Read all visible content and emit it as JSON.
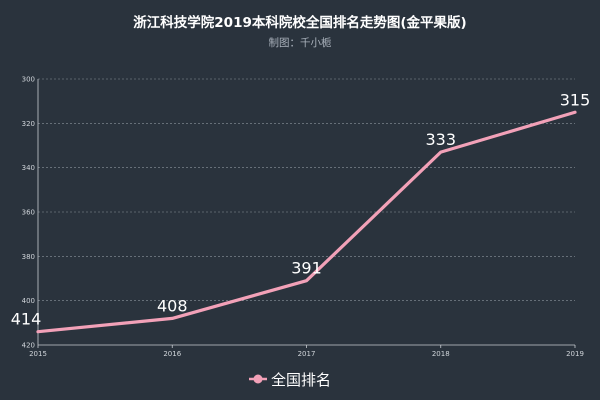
{
  "chart_data": {
    "type": "line",
    "title": "浙江科技学院2019本科院校全国排名走势图(金平果版)",
    "subtitle": "制图：千小栀",
    "categories": [
      "2015",
      "2016",
      "2017",
      "2018",
      "2019"
    ],
    "series": [
      {
        "name": "全国排名",
        "values": [
          414,
          408,
          391,
          333,
          315
        ],
        "color": "#f2a1b8"
      }
    ],
    "y_ticks": [
      "300",
      "320",
      "340",
      "360",
      "380",
      "400",
      "420"
    ],
    "ylim": [
      300,
      420
    ],
    "y_inverted": true,
    "grid": true,
    "legend_position": "bottom-center",
    "colors": {
      "background": "#2a333d",
      "grid": "#8a939c",
      "axis": "#c8cdd2"
    }
  }
}
